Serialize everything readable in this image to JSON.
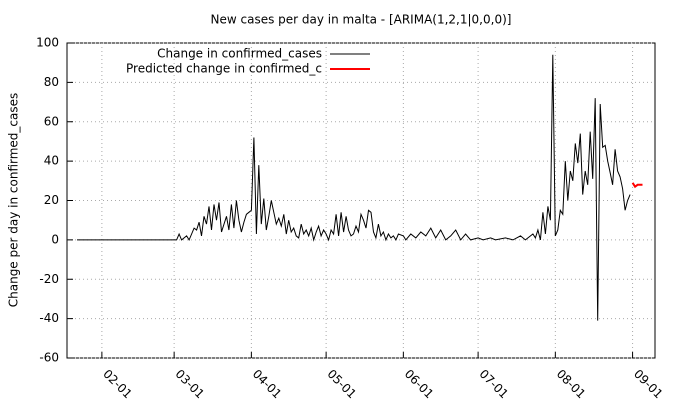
{
  "chart_data": {
    "type": "line",
    "title": "New cases per day in malta -  [ARIMA(1,2,1|0,0,0)]",
    "ylabel": "Change per day in confirmed_cases",
    "xlim": [
      "01-18",
      "09-10"
    ],
    "xticks": [
      "02-01",
      "03-01",
      "04-01",
      "05-01",
      "06-01",
      "07-01",
      "08-01",
      "09-01"
    ],
    "ylim": [
      -60,
      100
    ],
    "yticks": [
      -60,
      -40,
      -20,
      0,
      20,
      40,
      60,
      80,
      100
    ],
    "grid": true,
    "legend": "top-left",
    "series": [
      {
        "name": "Change in confirmed_cases",
        "color": "#000000",
        "x": [
          "01-22",
          "03-02",
          "03-03",
          "03-04",
          "03-06",
          "03-07",
          "03-09",
          "03-10",
          "03-11",
          "03-12",
          "03-13",
          "03-14",
          "03-15",
          "03-16",
          "03-17",
          "03-18",
          "03-19",
          "03-20",
          "03-21",
          "03-22",
          "03-23",
          "03-24",
          "03-25",
          "03-26",
          "03-27",
          "03-28",
          "03-29",
          "03-30",
          "03-31",
          "04-01",
          "04-02",
          "04-03",
          "04-04",
          "04-05",
          "04-06",
          "04-07",
          "04-08",
          "04-09",
          "04-10",
          "04-11",
          "04-12",
          "04-13",
          "04-14",
          "04-15",
          "04-16",
          "04-17",
          "04-18",
          "04-19",
          "04-20",
          "04-21",
          "04-22",
          "04-23",
          "04-24",
          "04-25",
          "04-26",
          "04-27",
          "04-28",
          "04-29",
          "04-30",
          "05-01",
          "05-02",
          "05-03",
          "05-04",
          "05-05",
          "05-06",
          "05-07",
          "05-08",
          "05-09",
          "05-10",
          "05-11",
          "05-12",
          "05-13",
          "05-14",
          "05-15",
          "05-16",
          "05-17",
          "05-18",
          "05-19",
          "05-20",
          "05-21",
          "05-22",
          "05-23",
          "05-24",
          "05-25",
          "05-26",
          "05-27",
          "05-28",
          "05-29",
          "05-30",
          "06-01",
          "06-02",
          "06-04",
          "06-06",
          "06-08",
          "06-10",
          "06-12",
          "06-14",
          "06-16",
          "06-18",
          "06-20",
          "06-22",
          "06-24",
          "06-26",
          "06-28",
          "07-01",
          "07-03",
          "07-06",
          "07-08",
          "07-12",
          "07-15",
          "07-18",
          "07-20",
          "07-23",
          "07-24",
          "07-25",
          "07-26",
          "07-27",
          "07-28",
          "07-29",
          "07-30",
          "07-31",
          "08-01",
          "08-02",
          "08-03",
          "08-04",
          "08-05",
          "08-06",
          "08-07",
          "08-08",
          "08-09",
          "08-10",
          "08-11",
          "08-12",
          "08-13",
          "08-14",
          "08-15",
          "08-16",
          "08-17",
          "08-18",
          "08-19",
          "08-20",
          "08-21",
          "08-22",
          "08-23",
          "08-24",
          "08-25",
          "08-26",
          "08-27",
          "08-28",
          "08-29",
          "08-30",
          "08-31"
        ],
        "values": [
          0,
          0,
          3,
          0,
          2,
          0,
          6,
          5,
          9,
          2,
          12,
          8,
          17,
          5,
          18,
          10,
          19,
          4,
          8,
          12,
          5,
          18,
          6,
          20,
          10,
          4,
          9,
          13,
          14,
          15,
          52,
          3,
          38,
          8,
          21,
          5,
          12,
          20,
          14,
          8,
          11,
          7,
          13,
          3,
          10,
          4,
          6,
          2,
          1,
          8,
          3,
          5,
          2,
          6,
          0,
          4,
          7,
          2,
          5,
          3,
          0,
          5,
          3,
          13,
          2,
          14,
          4,
          12,
          5,
          2,
          3,
          7,
          4,
          13,
          10,
          6,
          15,
          14,
          4,
          1,
          8,
          2,
          4,
          0,
          3,
          1,
          2,
          0,
          3,
          2,
          0,
          3,
          1,
          4,
          2,
          6,
          1,
          5,
          0,
          2,
          5,
          0,
          3,
          0,
          1,
          0,
          1,
          0,
          1,
          0,
          2,
          0,
          3,
          1,
          5,
          0,
          14,
          3,
          17,
          10,
          94,
          2,
          5,
          15,
          13,
          40,
          20,
          35,
          30,
          49,
          39,
          54,
          23,
          35,
          28,
          55,
          31,
          72,
          -41,
          69,
          47,
          48,
          40,
          34,
          28,
          46,
          35,
          32,
          26,
          15,
          20,
          23
        ]
      },
      {
        "name": "Predicted change in confirmed_c",
        "color": "#ff0000",
        "x": [
          "09-01",
          "09-02",
          "09-03",
          "09-05"
        ],
        "values": [
          29,
          27,
          28,
          28
        ]
      }
    ]
  }
}
